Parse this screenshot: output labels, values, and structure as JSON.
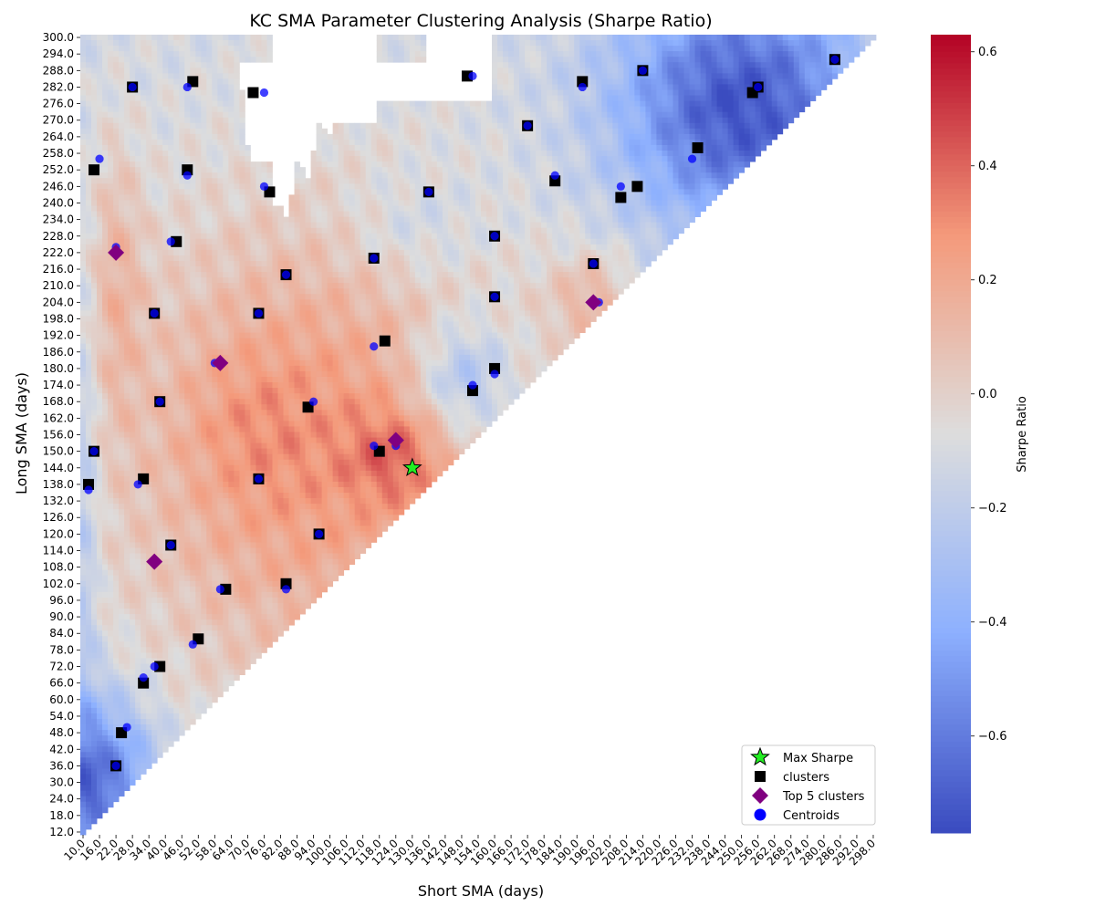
{
  "chart_data": {
    "type": "heatmap",
    "title": "KC SMA Parameter Clustering Analysis (Sharpe Ratio)",
    "xlabel": "Short SMA (days)",
    "ylabel": "Long SMA (days)",
    "colorbar_label": "Sharpe Ratio",
    "colormap": "coolwarm",
    "value_range": [
      -0.77,
      0.63
    ],
    "x_range": [
      10,
      300
    ],
    "y_range": [
      12,
      300
    ],
    "grid_step_days": 2,
    "x_tick_labels": [
      "10.0",
      "16.0",
      "22.0",
      "28.0",
      "34.0",
      "40.0",
      "46.0",
      "52.0",
      "58.0",
      "64.0",
      "70.0",
      "76.0",
      "82.0",
      "88.0",
      "94.0",
      "100.0",
      "106.0",
      "112.0",
      "118.0",
      "124.0",
      "130.0",
      "136.0",
      "142.0",
      "148.0",
      "154.0",
      "160.0",
      "166.0",
      "172.0",
      "178.0",
      "184.0",
      "190.0",
      "196.0",
      "202.0",
      "208.0",
      "214.0",
      "220.0",
      "226.0",
      "232.0",
      "238.0",
      "244.0",
      "250.0",
      "256.0",
      "262.0",
      "268.0",
      "274.0",
      "280.0",
      "286.0",
      "292.0",
      "298.0"
    ],
    "y_tick_labels": [
      "300.0",
      "294.0",
      "288.0",
      "282.0",
      "276.0",
      "270.0",
      "264.0",
      "258.0",
      "252.0",
      "246.0",
      "240.0",
      "234.0",
      "228.0",
      "222.0",
      "216.0",
      "210.0",
      "204.0",
      "198.0",
      "192.0",
      "186.0",
      "180.0",
      "174.0",
      "168.0",
      "162.0",
      "156.0",
      "150.0",
      "144.0",
      "138.0",
      "132.0",
      "126.0",
      "120.0",
      "114.0",
      "108.0",
      "102.0",
      "96.0",
      "90.0",
      "84.0",
      "78.0",
      "72.0",
      "66.0",
      "60.0",
      "54.0",
      "48.0",
      "42.0",
      "36.0",
      "30.0",
      "24.0",
      "18.0",
      "12.0"
    ],
    "colorbar_ticks": [
      "0.6",
      "0.4",
      "0.2",
      "0.0",
      "−0.2",
      "−0.4",
      "−0.6"
    ],
    "legend": {
      "placement": "lower-right",
      "entries": [
        {
          "label": "Max Sharpe",
          "marker": "star",
          "color": "#22ee22"
        },
        {
          "label": "clusters",
          "marker": "square",
          "color": "#000000"
        },
        {
          "label": "Top 5 clusters",
          "marker": "diamond",
          "color": "#800080"
        },
        {
          "label": "Centroids",
          "marker": "circle",
          "color": "#0000ff"
        }
      ]
    },
    "max_sharpe": {
      "x": 130,
      "y": 144
    },
    "clusters": [
      [
        14,
        252
      ],
      [
        28,
        282
      ],
      [
        50,
        284
      ],
      [
        72,
        280
      ],
      [
        78,
        244
      ],
      [
        44,
        226
      ],
      [
        48,
        252
      ],
      [
        36,
        200
      ],
      [
        38,
        168
      ],
      [
        14,
        150
      ],
      [
        12,
        138
      ],
      [
        32,
        140
      ],
      [
        74,
        200
      ],
      [
        84,
        214
      ],
      [
        74,
        140
      ],
      [
        96,
        120
      ],
      [
        42,
        116
      ],
      [
        62,
        100
      ],
      [
        84,
        102
      ],
      [
        52,
        82
      ],
      [
        38,
        72
      ],
      [
        32,
        66
      ],
      [
        24,
        48
      ],
      [
        22,
        36
      ],
      [
        92,
        166
      ],
      [
        116,
        220
      ],
      [
        120,
        190
      ],
      [
        118,
        150
      ],
      [
        136,
        244
      ],
      [
        150,
        286
      ],
      [
        160,
        228
      ],
      [
        160,
        206
      ],
      [
        160,
        180
      ],
      [
        152,
        172
      ],
      [
        172,
        268
      ],
      [
        182,
        248
      ],
      [
        192,
        284
      ],
      [
        196,
        218
      ],
      [
        214,
        288
      ],
      [
        206,
        242
      ],
      [
        212,
        246
      ],
      [
        234,
        260
      ],
      [
        256,
        282
      ],
      [
        254,
        280
      ],
      [
        284,
        292
      ]
    ],
    "centroids": [
      [
        16,
        256
      ],
      [
        28,
        282
      ],
      [
        48,
        282
      ],
      [
        76,
        280
      ],
      [
        76,
        246
      ],
      [
        42,
        226
      ],
      [
        48,
        250
      ],
      [
        36,
        200
      ],
      [
        38,
        168
      ],
      [
        14,
        150
      ],
      [
        12,
        136
      ],
      [
        30,
        138
      ],
      [
        74,
        200
      ],
      [
        84,
        214
      ],
      [
        74,
        140
      ],
      [
        96,
        120
      ],
      [
        42,
        116
      ],
      [
        60,
        100
      ],
      [
        84,
        100
      ],
      [
        50,
        80
      ],
      [
        36,
        72
      ],
      [
        32,
        68
      ],
      [
        26,
        50
      ],
      [
        22,
        36
      ],
      [
        94,
        168
      ],
      [
        116,
        220
      ],
      [
        116,
        188
      ],
      [
        116,
        152
      ],
      [
        136,
        244
      ],
      [
        152,
        286
      ],
      [
        160,
        228
      ],
      [
        160,
        206
      ],
      [
        160,
        178
      ],
      [
        152,
        174
      ],
      [
        172,
        268
      ],
      [
        182,
        250
      ],
      [
        192,
        282
      ],
      [
        196,
        218
      ],
      [
        214,
        288
      ],
      [
        206,
        246
      ],
      [
        232,
        256
      ],
      [
        256,
        282
      ],
      [
        284,
        292
      ],
      [
        22,
        224
      ],
      [
        58,
        182
      ],
      [
        124,
        152
      ],
      [
        198,
        204
      ],
      [
        36,
        110
      ]
    ],
    "top5_clusters": [
      [
        22,
        222
      ],
      [
        60,
        182
      ],
      [
        124,
        154
      ],
      [
        196,
        204
      ],
      [
        36,
        110
      ]
    ],
    "noted_regions": {
      "high_sharpe_band": "diagonal ridge near short 110-135, long 135-165 and left edge short 14-30, long 190-250",
      "low_sharpe_band": "top right (short 220-270, long 240-300) and bottom left (short 10-35, long 12-55)",
      "missing_region": "white blank area around short 70-115, long 235-300"
    }
  }
}
